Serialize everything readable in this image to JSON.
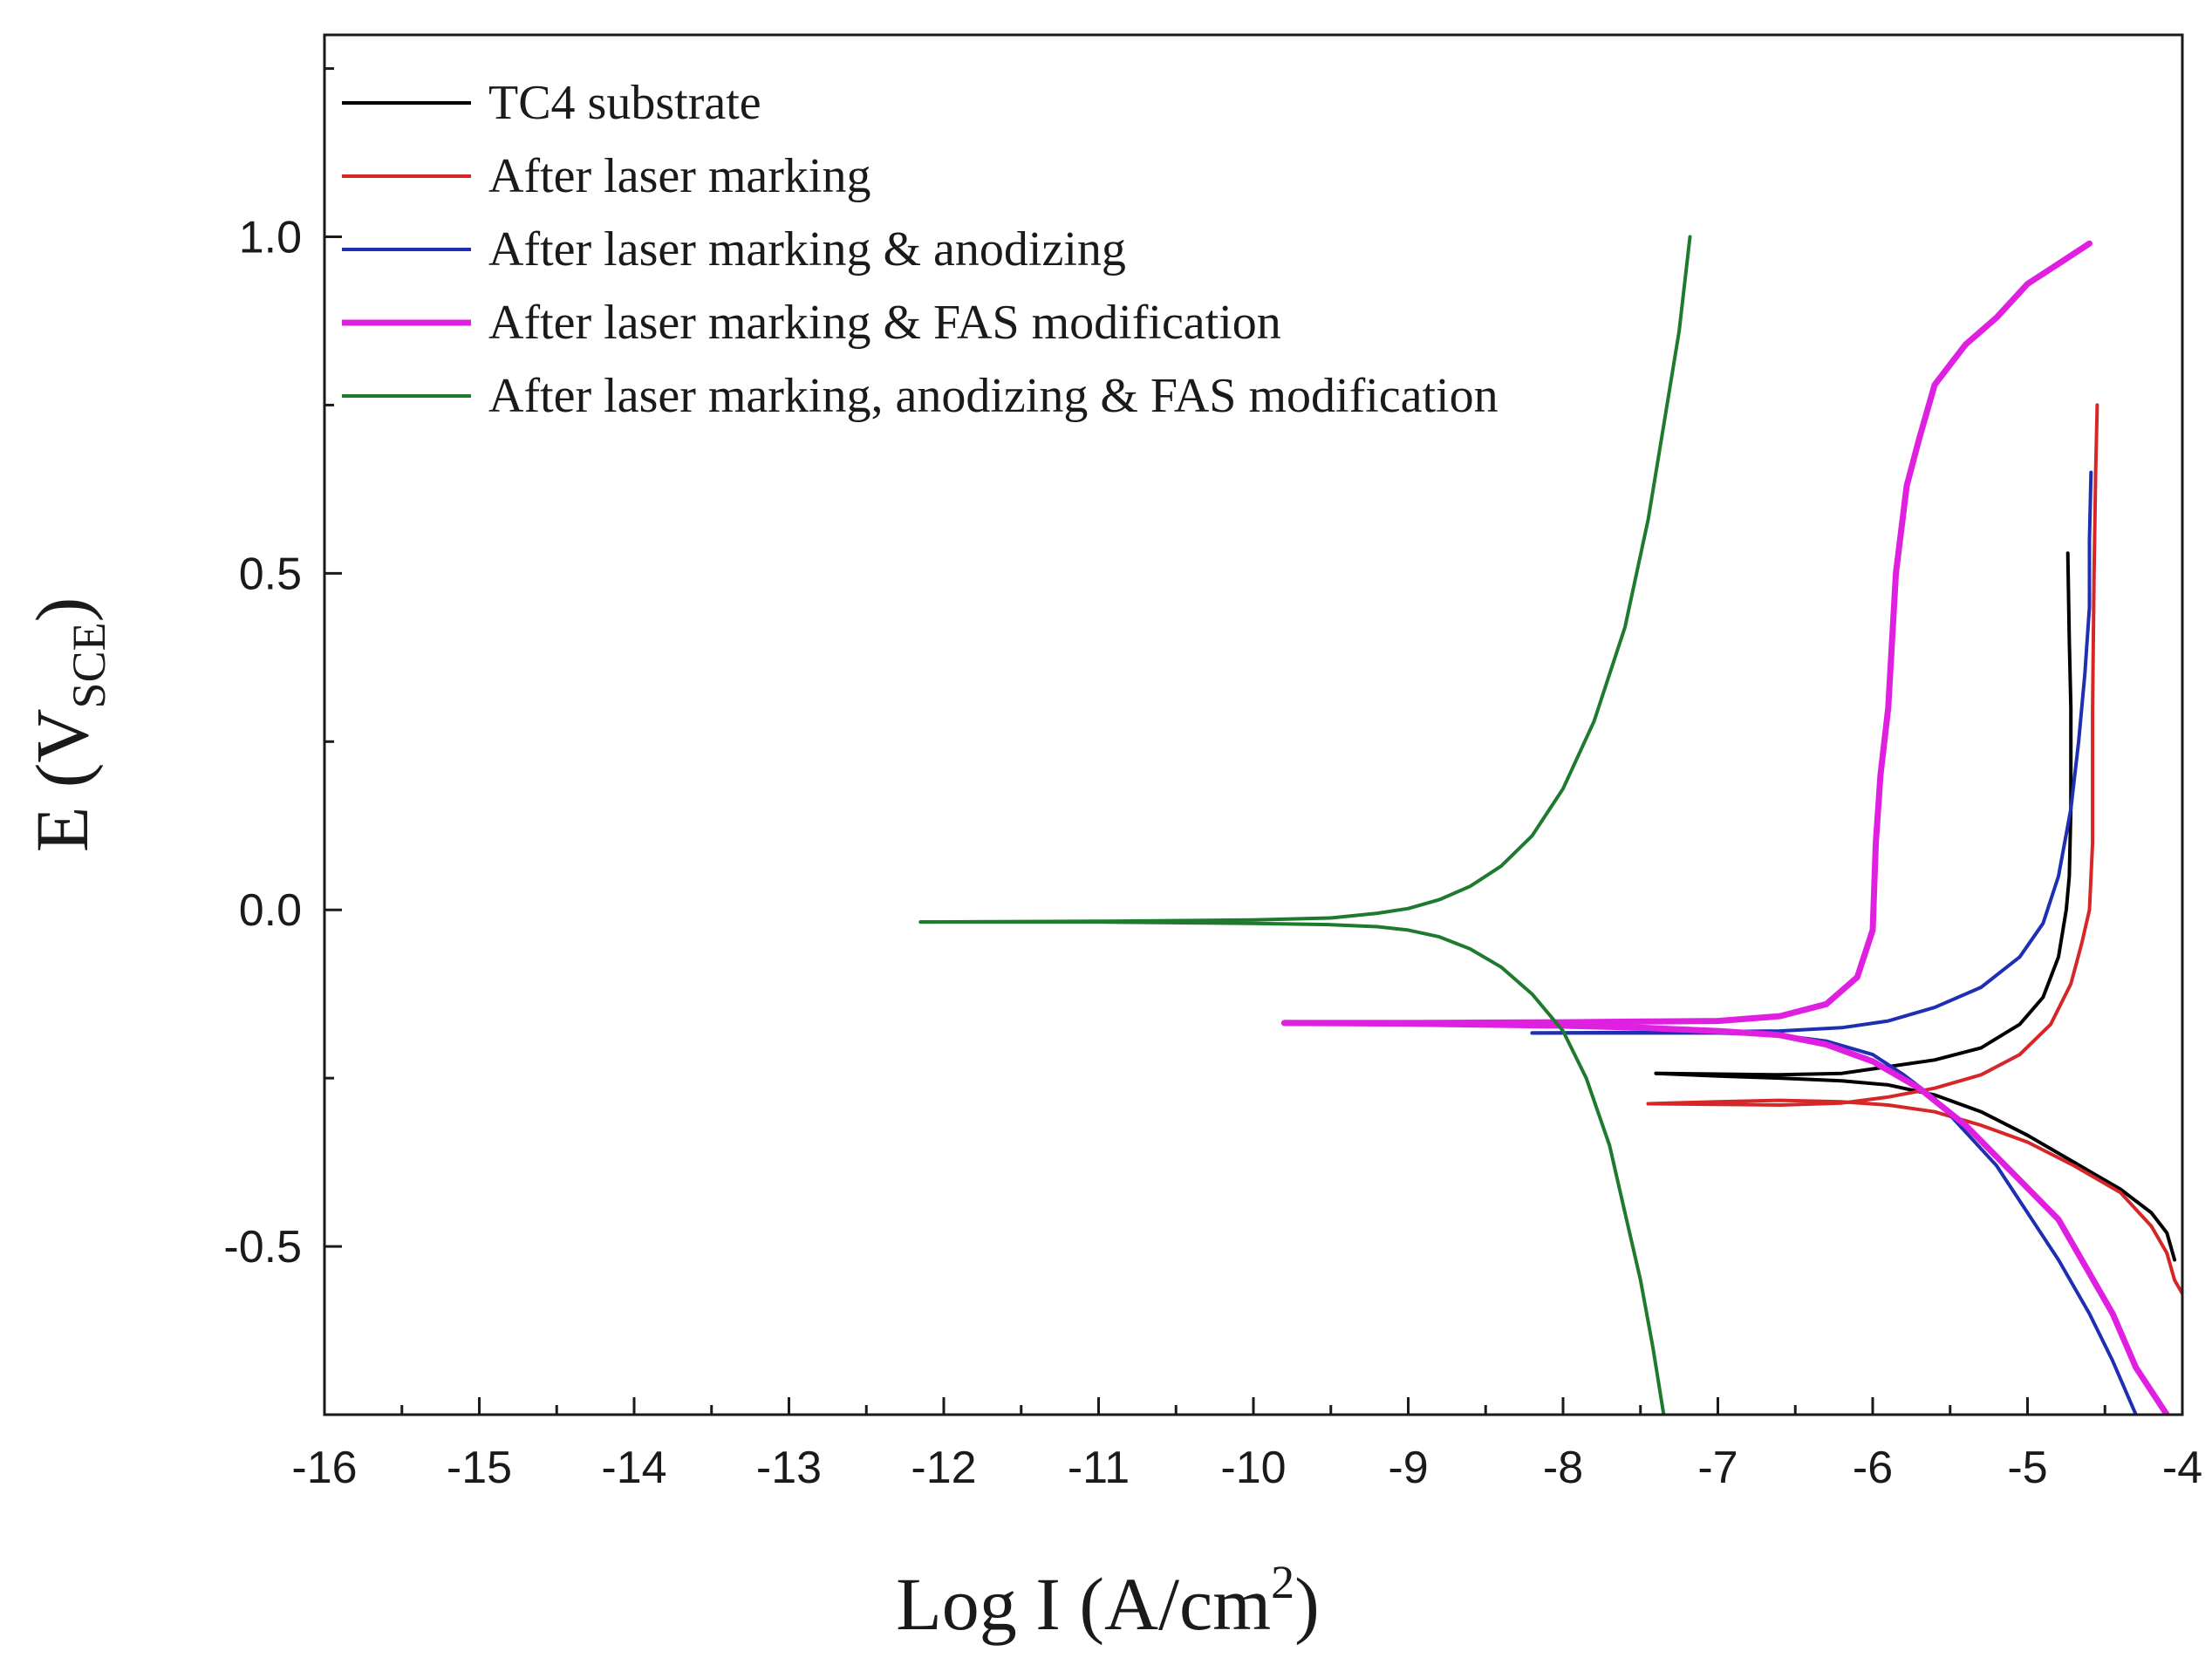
{
  "chart_data": {
    "type": "line",
    "title": "",
    "xlabel": {
      "main": "Log I (A/cm",
      "superscript": "2",
      "close": ")"
    },
    "ylabel": {
      "main": "E (V",
      "subscript": "SCE",
      "close": ")"
    },
    "xlim": [
      -16,
      -4
    ],
    "ylim": [
      -0.75,
      1.3
    ],
    "x_ticks": [
      -16,
      -15,
      -14,
      -13,
      -12,
      -11,
      -10,
      -9,
      -8,
      -7,
      -6,
      -5,
      -4
    ],
    "x_tick_labels": [
      "-16",
      "-15",
      "-14",
      "-13",
      "-12",
      "-11",
      "-10",
      "-9",
      "-8",
      "-7",
      "-6",
      "-5",
      "-4"
    ],
    "y_ticks": [
      -0.5,
      0.0,
      0.5,
      1.0
    ],
    "y_tick_labels": [
      "-0.5",
      "0.0",
      "0.5",
      "1.0"
    ],
    "grid": false,
    "legend_position": "top-left",
    "series": [
      {
        "name": "TC4 substrate",
        "color": "#000000",
        "segments": [
          [
            [
              -7.4,
              -0.243
            ],
            [
              -7.0,
              -0.244
            ],
            [
              -6.6,
              -0.245
            ],
            [
              -6.2,
              -0.243
            ],
            [
              -5.9,
              -0.233
            ],
            [
              -5.6,
              -0.223
            ],
            [
              -5.3,
              -0.205
            ],
            [
              -5.05,
              -0.17
            ],
            [
              -4.9,
              -0.13
            ],
            [
              -4.8,
              -0.07
            ],
            [
              -4.75,
              0.0
            ],
            [
              -4.73,
              0.05
            ],
            [
              -4.72,
              0.15
            ],
            [
              -4.72,
              0.3
            ],
            [
              -4.73,
              0.4
            ],
            [
              -4.74,
              0.53
            ]
          ],
          [
            [
              -7.4,
              -0.243
            ],
            [
              -7.0,
              -0.247
            ],
            [
              -6.6,
              -0.25
            ],
            [
              -6.2,
              -0.254
            ],
            [
              -5.9,
              -0.26
            ],
            [
              -5.6,
              -0.275
            ],
            [
              -5.3,
              -0.3
            ],
            [
              -5.0,
              -0.335
            ],
            [
              -4.7,
              -0.375
            ],
            [
              -4.4,
              -0.415
            ],
            [
              -4.2,
              -0.45
            ],
            [
              -4.1,
              -0.48
            ],
            [
              -4.05,
              -0.52
            ]
          ]
        ]
      },
      {
        "name": "After laser marking",
        "color": "#d62728",
        "segments": [
          [
            [
              -7.45,
              -0.288
            ],
            [
              -7.0,
              -0.289
            ],
            [
              -6.6,
              -0.29
            ],
            [
              -6.2,
              -0.287
            ],
            [
              -5.9,
              -0.278
            ],
            [
              -5.6,
              -0.265
            ],
            [
              -5.3,
              -0.245
            ],
            [
              -5.05,
              -0.215
            ],
            [
              -4.85,
              -0.17
            ],
            [
              -4.72,
              -0.11
            ],
            [
              -4.65,
              -0.05
            ],
            [
              -4.6,
              0.0
            ],
            [
              -4.58,
              0.1
            ],
            [
              -4.58,
              0.3
            ],
            [
              -4.57,
              0.5
            ],
            [
              -4.56,
              0.65
            ],
            [
              -4.55,
              0.75
            ]
          ],
          [
            [
              -7.45,
              -0.288
            ],
            [
              -7.0,
              -0.285
            ],
            [
              -6.6,
              -0.283
            ],
            [
              -6.2,
              -0.285
            ],
            [
              -5.9,
              -0.29
            ],
            [
              -5.6,
              -0.3
            ],
            [
              -5.3,
              -0.32
            ],
            [
              -5.0,
              -0.345
            ],
            [
              -4.7,
              -0.38
            ],
            [
              -4.4,
              -0.42
            ],
            [
              -4.2,
              -0.47
            ],
            [
              -4.1,
              -0.51
            ],
            [
              -4.05,
              -0.55
            ],
            [
              -4.0,
              -0.57
            ]
          ]
        ]
      },
      {
        "name": "After laser marking & anodizing",
        "color": "#1f2fb4",
        "segments": [
          [
            [
              -8.2,
              -0.183
            ],
            [
              -7.5,
              -0.182
            ],
            [
              -7.0,
              -0.181
            ],
            [
              -6.6,
              -0.18
            ],
            [
              -6.2,
              -0.175
            ],
            [
              -5.9,
              -0.165
            ],
            [
              -5.6,
              -0.145
            ],
            [
              -5.3,
              -0.115
            ],
            [
              -5.05,
              -0.07
            ],
            [
              -4.9,
              -0.02
            ],
            [
              -4.8,
              0.05
            ],
            [
              -4.72,
              0.15
            ],
            [
              -4.67,
              0.25
            ],
            [
              -4.63,
              0.35
            ],
            [
              -4.6,
              0.45
            ],
            [
              -4.6,
              0.55
            ],
            [
              -4.59,
              0.65
            ]
          ],
          [
            [
              -8.2,
              -0.183
            ],
            [
              -7.5,
              -0.183
            ],
            [
              -7.0,
              -0.183
            ],
            [
              -6.6,
              -0.186
            ],
            [
              -6.3,
              -0.195
            ],
            [
              -6.0,
              -0.215
            ],
            [
              -5.8,
              -0.245
            ],
            [
              -5.6,
              -0.28
            ],
            [
              -5.4,
              -0.33
            ],
            [
              -5.2,
              -0.38
            ],
            [
              -5.0,
              -0.45
            ],
            [
              -4.8,
              -0.52
            ],
            [
              -4.6,
              -0.6
            ],
            [
              -4.45,
              -0.67
            ],
            [
              -4.3,
              -0.75
            ]
          ]
        ]
      },
      {
        "name": "After laser marking & FAS modification",
        "color": "#e020e0",
        "segments": [
          [
            [
              -9.8,
              -0.168
            ],
            [
              -9.0,
              -0.168
            ],
            [
              -8.0,
              -0.167
            ],
            [
              -7.5,
              -0.166
            ],
            [
              -7.0,
              -0.165
            ],
            [
              -6.6,
              -0.158
            ],
            [
              -6.3,
              -0.14
            ],
            [
              -6.1,
              -0.1
            ],
            [
              -6.0,
              -0.03
            ],
            [
              -5.98,
              0.1
            ],
            [
              -5.95,
              0.2
            ],
            [
              -5.9,
              0.3
            ],
            [
              -5.85,
              0.5
            ],
            [
              -5.78,
              0.63
            ],
            [
              -5.7,
              0.7
            ],
            [
              -5.6,
              0.78
            ],
            [
              -5.4,
              0.84
            ],
            [
              -5.2,
              0.88
            ],
            [
              -5.0,
              0.93
            ],
            [
              -4.8,
              0.96
            ],
            [
              -4.6,
              0.99
            ]
          ],
          [
            [
              -9.8,
              -0.168
            ],
            [
              -9.0,
              -0.169
            ],
            [
              -8.0,
              -0.172
            ],
            [
              -7.5,
              -0.175
            ],
            [
              -7.0,
              -0.18
            ],
            [
              -6.6,
              -0.186
            ],
            [
              -6.3,
              -0.2
            ],
            [
              -6.0,
              -0.225
            ],
            [
              -5.7,
              -0.265
            ],
            [
              -5.4,
              -0.32
            ],
            [
              -5.1,
              -0.39
            ],
            [
              -4.8,
              -0.46
            ],
            [
              -4.6,
              -0.54
            ],
            [
              -4.45,
              -0.6
            ],
            [
              -4.3,
              -0.68
            ],
            [
              -4.1,
              -0.75
            ]
          ]
        ]
      },
      {
        "name": "After laser marking, anodizing & FAS modification",
        "color": "#1e7b2e",
        "segments": [
          [
            [
              -12.15,
              -0.018
            ],
            [
              -11.0,
              -0.017
            ],
            [
              -10.0,
              -0.015
            ],
            [
              -9.5,
              -0.012
            ],
            [
              -9.2,
              -0.005
            ],
            [
              -9.0,
              0.002
            ],
            [
              -8.8,
              0.015
            ],
            [
              -8.6,
              0.035
            ],
            [
              -8.4,
              0.065
            ],
            [
              -8.2,
              0.11
            ],
            [
              -8.0,
              0.18
            ],
            [
              -7.8,
              0.28
            ],
            [
              -7.6,
              0.42
            ],
            [
              -7.45,
              0.58
            ],
            [
              -7.35,
              0.72
            ],
            [
              -7.25,
              0.86
            ],
            [
              -7.18,
              1.0
            ]
          ],
          [
            [
              -12.15,
              -0.018
            ],
            [
              -11.0,
              -0.018
            ],
            [
              -10.0,
              -0.02
            ],
            [
              -9.5,
              -0.022
            ],
            [
              -9.2,
              -0.025
            ],
            [
              -9.0,
              -0.03
            ],
            [
              -8.8,
              -0.04
            ],
            [
              -8.6,
              -0.058
            ],
            [
              -8.4,
              -0.085
            ],
            [
              -8.2,
              -0.125
            ],
            [
              -8.0,
              -0.18
            ],
            [
              -7.85,
              -0.25
            ],
            [
              -7.7,
              -0.35
            ],
            [
              -7.6,
              -0.45
            ],
            [
              -7.5,
              -0.55
            ],
            [
              -7.42,
              -0.65
            ],
            [
              -7.35,
              -0.75
            ]
          ]
        ]
      }
    ]
  }
}
